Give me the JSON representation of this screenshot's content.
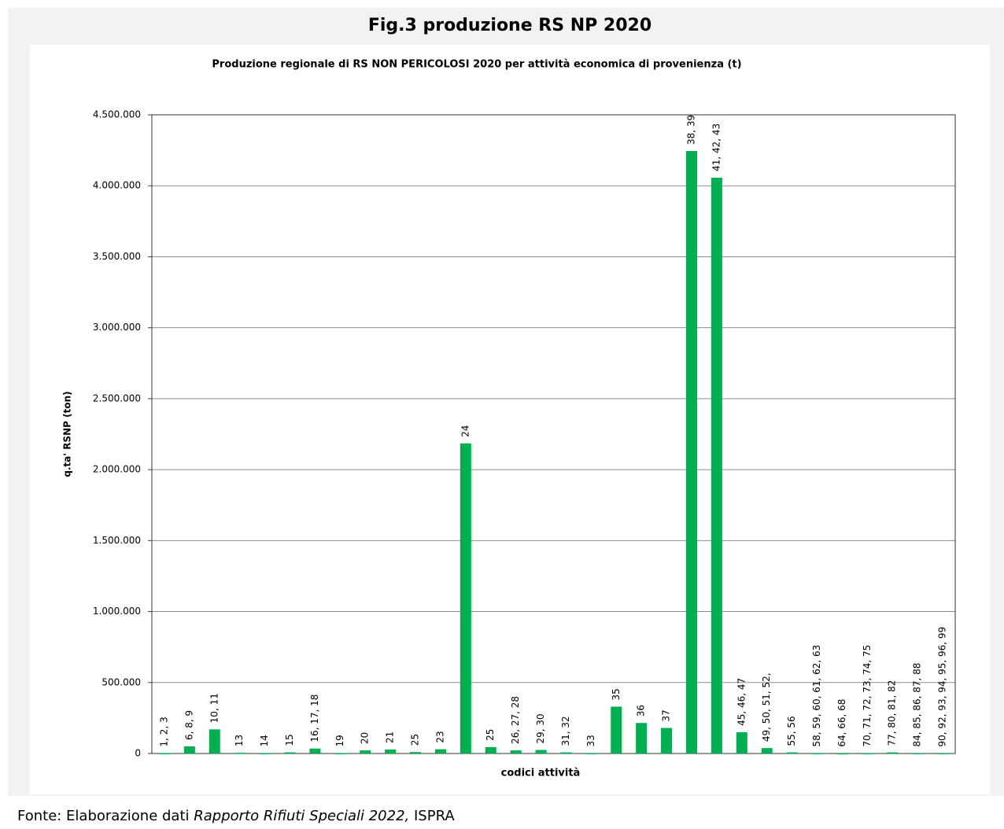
{
  "figure_title": "Fig.3 produzione RS NP 2020",
  "footer": {
    "prefix": "Fonte: Elaborazione dati ",
    "source": "Rapporto Rifiuti Speciali 2022,",
    "suffix": " ISPRA"
  },
  "chart_data": {
    "type": "bar",
    "title": "Produzione regionale di RS  NON PERICOLOSI 2020   per attività economica di provenienza (t)",
    "x_label": "codici  attività",
    "y_label": "q.ta' RSNP (ton)",
    "categories": [
      "1, 2, 3",
      "6, 8, 9",
      "10, 11",
      "13",
      "14",
      "15",
      "16, 17, 18",
      "19",
      "20",
      "21",
      "25",
      "23",
      "24",
      "25",
      "26, 27, 28",
      "29, 30",
      "31, 32",
      "33",
      "35",
      "36",
      "37",
      "38, 39",
      "41, 42, 43",
      "45, 46, 47",
      "49, 50, 51, 52,",
      "55, 56",
      "58, 59, 60, 61, 62, 63",
      "64, 66, 68",
      "70, 71, 72, 73, 74, 75",
      "77, 80, 81, 82",
      "84, 85, 86, 87, 88",
      "90, 92, 93, 94, 95, 96, 99"
    ],
    "values": [
      3000,
      50000,
      170000,
      5000,
      3000,
      8000,
      35000,
      3000,
      22000,
      28000,
      10000,
      30000,
      2185000,
      45000,
      22000,
      25000,
      8000,
      3000,
      330000,
      215000,
      180000,
      4245000,
      4057000,
      150000,
      38000,
      8000,
      3000,
      2000,
      3000,
      8000,
      3000,
      3000
    ],
    "color": "#00b050",
    "ylim": [
      0,
      4500000
    ],
    "yticks": [
      0,
      {
        "value": 500000,
        "label": "500.000"
      },
      {
        "value": 1000000,
        "label": "1.000.000"
      },
      {
        "value": 1500000,
        "label": "1.500.000"
      },
      {
        "value": 2000000,
        "label": "2.000.000"
      },
      {
        "value": 2500000,
        "label": "2.500.000"
      },
      {
        "value": 3000000,
        "label": "3.000.000"
      },
      {
        "value": 3500000,
        "label": "3.500.000"
      },
      {
        "value": 4000000,
        "label": "4.000.000"
      },
      {
        "value": 4500000,
        "label": "4.500.000"
      }
    ],
    "grid": true
  }
}
